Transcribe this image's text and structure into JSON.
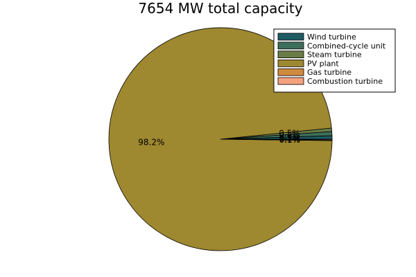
{
  "chart_data": {
    "type": "pie",
    "title": "7654 MW total capacity",
    "legend_position": "top-right",
    "slices": [
      {
        "name": "Wind turbine",
        "percent": 0.5,
        "label": "0.5%",
        "color": "#1f5b63"
      },
      {
        "name": "Combined-cycle unit",
        "percent": 0.6,
        "label": "0.6%",
        "color": "#3d6e59"
      },
      {
        "name": "Steam turbine",
        "percent": 0.5,
        "label": "0.5%",
        "color": "#6a7c46"
      },
      {
        "name": "PV plant",
        "percent": 98.2,
        "label": "98.2%",
        "color": "#9e8830"
      },
      {
        "name": "Gas turbine",
        "percent": 0.1,
        "label": "0.1%",
        "color": "#d0893e"
      },
      {
        "name": "Combustion turbine",
        "percent": 0.1,
        "label": "0.1%",
        "color": "#f4a17e"
      }
    ]
  }
}
